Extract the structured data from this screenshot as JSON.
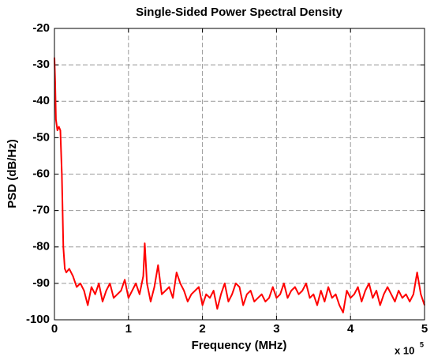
{
  "chart_data": {
    "type": "line",
    "title": "Single-Sided Power Spectral Density",
    "x_label": "Frequency (MHz)",
    "y_label": "PSD (dB/Hz)",
    "x_multiplier": {
      "base": "x 10",
      "exponent": "5"
    },
    "xlim": [
      0,
      5
    ],
    "xticks": [
      0,
      1,
      2,
      3,
      4,
      5
    ],
    "ylim": [
      -100,
      -20
    ],
    "yticks": [
      -100,
      -90,
      -80,
      -70,
      -60,
      -50,
      -40,
      -30,
      -20
    ],
    "grid": true,
    "x": [
      0,
      0.01,
      0.02,
      0.04,
      0.06,
      0.08,
      0.1,
      0.12,
      0.14,
      0.16,
      0.2,
      0.25,
      0.3,
      0.35,
      0.4,
      0.45,
      0.5,
      0.55,
      0.6,
      0.65,
      0.7,
      0.75,
      0.8,
      0.85,
      0.9,
      0.95,
      1.0,
      1.05,
      1.1,
      1.15,
      1.2,
      1.22,
      1.25,
      1.3,
      1.35,
      1.4,
      1.45,
      1.5,
      1.55,
      1.6,
      1.65,
      1.7,
      1.75,
      1.8,
      1.85,
      1.9,
      1.95,
      2.0,
      2.05,
      2.1,
      2.15,
      2.2,
      2.25,
      2.3,
      2.35,
      2.4,
      2.45,
      2.5,
      2.55,
      2.6,
      2.65,
      2.7,
      2.75,
      2.8,
      2.85,
      2.9,
      2.95,
      3.0,
      3.05,
      3.1,
      3.15,
      3.2,
      3.25,
      3.3,
      3.35,
      3.4,
      3.45,
      3.5,
      3.55,
      3.6,
      3.65,
      3.7,
      3.75,
      3.8,
      3.85,
      3.9,
      3.95,
      4.0,
      4.05,
      4.1,
      4.15,
      4.2,
      4.25,
      4.3,
      4.35,
      4.4,
      4.45,
      4.5,
      4.55,
      4.6,
      4.65,
      4.7,
      4.75,
      4.8,
      4.85,
      4.9,
      4.95,
      5.0
    ],
    "series": [
      {
        "name": "PSD",
        "color": "#ff0000",
        "values": [
          -28,
          -35,
          -45,
          -48,
          -47,
          -48,
          -60,
          -80,
          -86,
          -87,
          -86,
          -88,
          -91,
          -90,
          -92,
          -96,
          -91,
          -93,
          -90,
          -95,
          -92,
          -90,
          -94,
          -93,
          -92,
          -89,
          -94,
          -92,
          -90,
          -93,
          -88,
          -79,
          -90,
          -95,
          -91,
          -85,
          -93,
          -92,
          -91,
          -94,
          -87,
          -90,
          -92,
          -95,
          -93,
          -92,
          -91,
          -96,
          -93,
          -94,
          -92,
          -97,
          -93,
          -90,
          -95,
          -93,
          -90,
          -91,
          -96,
          -93,
          -92,
          -95,
          -94,
          -93,
          -95,
          -94,
          -91,
          -94,
          -93,
          -90,
          -94,
          -92,
          -91,
          -93,
          -92,
          -90,
          -94,
          -93,
          -96,
          -92,
          -95,
          -91,
          -94,
          -93,
          -96,
          -98,
          -92,
          -94,
          -93,
          -91,
          -95,
          -92,
          -90,
          -94,
          -92,
          -96,
          -93,
          -91,
          -93,
          -95,
          -92,
          -94,
          -93,
          -95,
          -93,
          -87,
          -93,
          -96
        ]
      }
    ]
  }
}
